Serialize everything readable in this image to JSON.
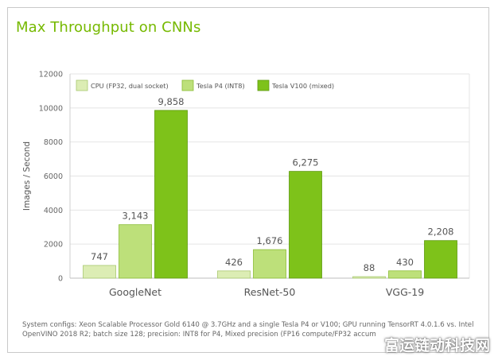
{
  "colors": {
    "accent": "#76b900",
    "cpu_fill": "#dcedb4",
    "p4_fill": "#bde07a",
    "v100_fill": "#7ec21a",
    "axis_text": "#666666"
  },
  "footnote": "System configs: Xeon Scalable Processor Gold 6140 @ 3.7GHz and a single Tesla P4 or V100; GPU running TensorRT 4.0.1.6 vs. Intel OpenVINO 2018 R2; batch size 128; precision: INT8 for P4, Mixed precision (FP16 compute/FP32 accum",
  "watermark": "富运链动科技网",
  "chart_data": {
    "type": "bar",
    "title": "Max Throughput on CNNs",
    "ylabel": "Images / Second",
    "xlabel": "",
    "ylim": [
      0,
      12000
    ],
    "yticks": [
      0,
      2000,
      4000,
      6000,
      8000,
      10000,
      12000
    ],
    "ytick_labels": [
      "0",
      "2000",
      "4000",
      "6000",
      "8000",
      "10000",
      "12000"
    ],
    "grid": true,
    "legend_position": "top-left",
    "categories": [
      "GoogleNet",
      "ResNet-50",
      "VGG-19"
    ],
    "series": [
      {
        "name": "CPU (FP32, dual socket)",
        "values": [
          747,
          426,
          88
        ],
        "labels": [
          "747",
          "426",
          "88"
        ]
      },
      {
        "name": "Tesla P4 (INT8)",
        "values": [
          3143,
          1676,
          430
        ],
        "labels": [
          "3,143",
          "1,676",
          "430"
        ]
      },
      {
        "name": "Tesla V100 (mixed)",
        "values": [
          9858,
          6275,
          2208
        ],
        "labels": [
          "9,858",
          "6,275",
          "2,208"
        ]
      }
    ]
  }
}
